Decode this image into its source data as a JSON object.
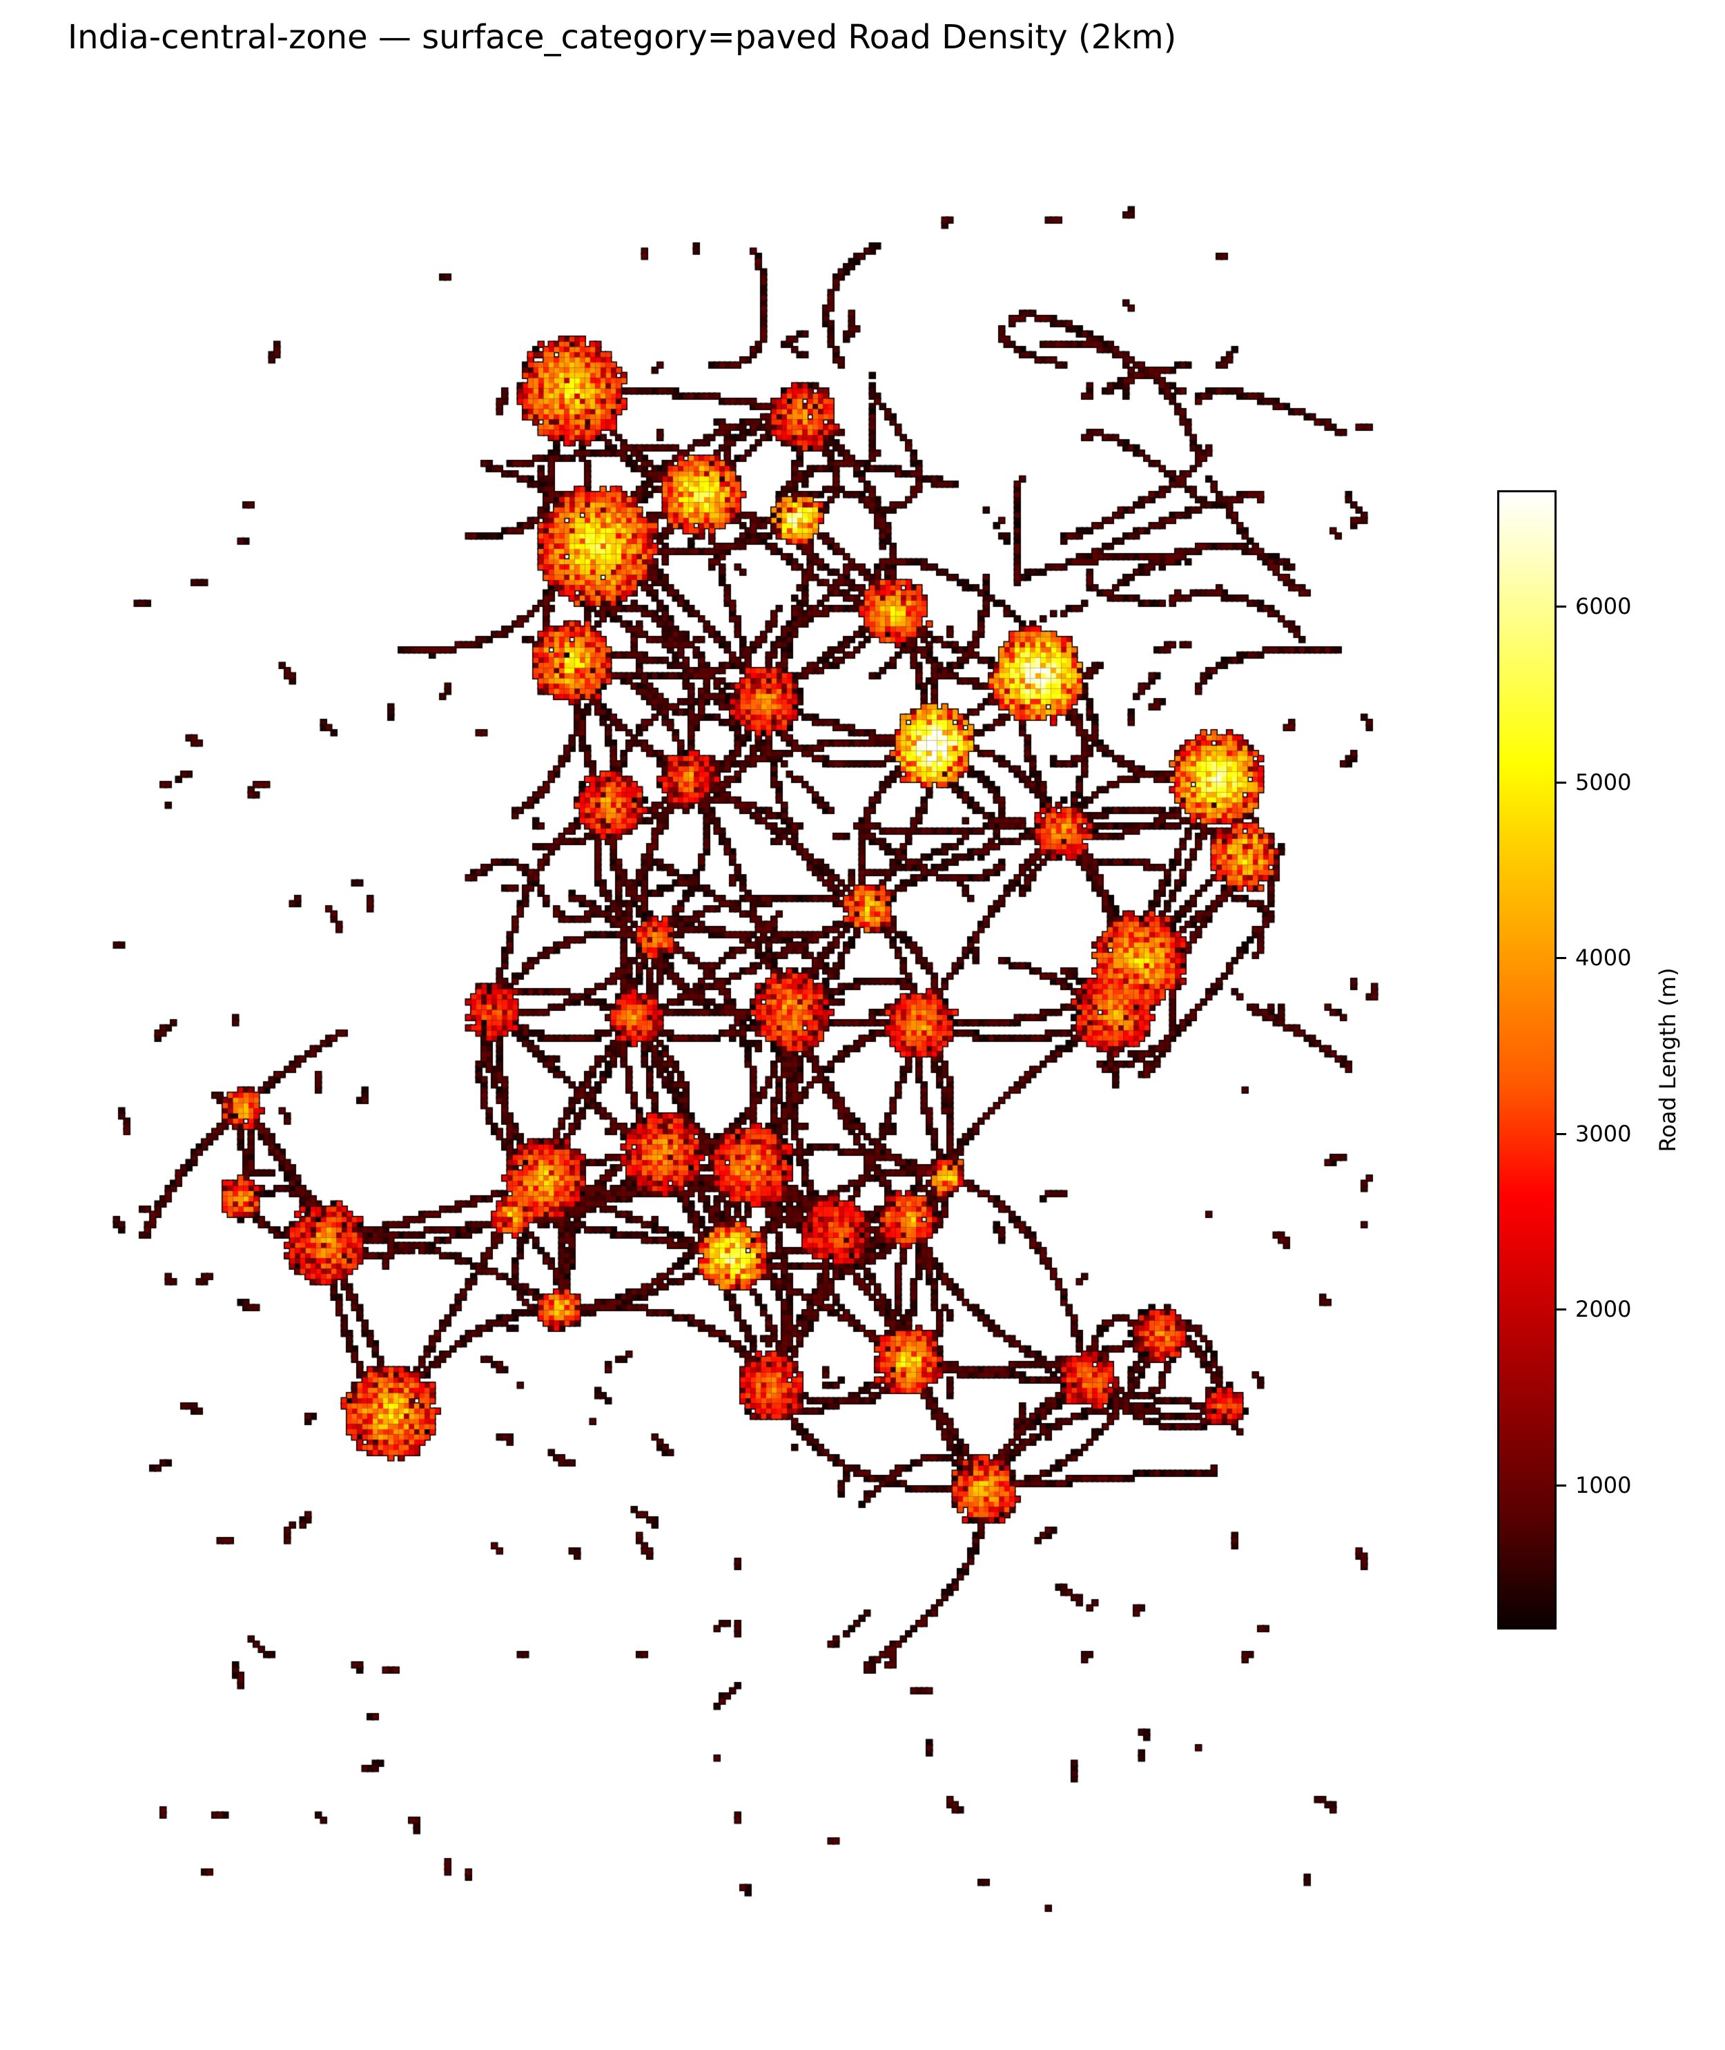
{
  "title": "India-central-zone — surface_category=paved Road Density (2km)",
  "colorbar": {
    "label": "Road Length (m)",
    "colormap": "hot",
    "range": [
      190,
      6650
    ],
    "ticks": [
      "1000",
      "2000",
      "3000",
      "4000",
      "5000",
      "6000"
    ],
    "tick_values": [
      1000,
      2000,
      3000,
      4000,
      5000,
      6000
    ]
  }
}
